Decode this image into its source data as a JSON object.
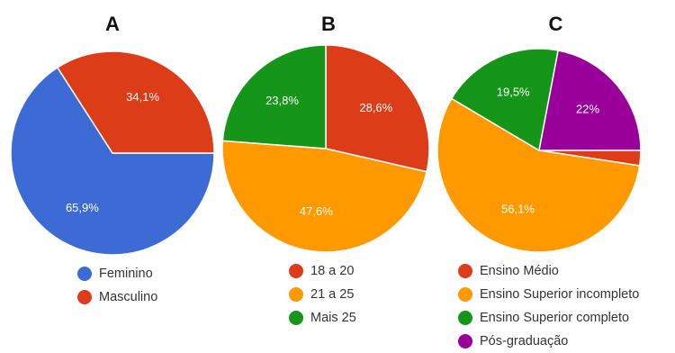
{
  "chart_data": [
    {
      "type": "pie",
      "title": "A",
      "slices": [
        {
          "label": "Feminino",
          "value": 65.9,
          "value_label": "65,9%",
          "color": "#3c6bd6"
        },
        {
          "label": "Masculino",
          "value": 34.1,
          "value_label": "34,1%",
          "color": "#dc3c17"
        }
      ]
    },
    {
      "type": "pie",
      "title": "B",
      "slices": [
        {
          "label": "18 a 20",
          "value": 28.6,
          "value_label": "28,6%",
          "color": "#dc3c17"
        },
        {
          "label": "21 a 25",
          "value": 47.6,
          "value_label": "47,6%",
          "color": "#ff9900"
        },
        {
          "label": "Mais 25",
          "value": 23.8,
          "value_label": "23,8%",
          "color": "#159618"
        }
      ]
    },
    {
      "type": "pie",
      "title": "C",
      "slices": [
        {
          "label": "Ensino Médio",
          "value": 2.4,
          "value_label": "",
          "color": "#dc3c17"
        },
        {
          "label": "Ensino Superior incompleto",
          "value": 56.1,
          "value_label": "56,1%",
          "color": "#ff9900"
        },
        {
          "label": "Ensino Superior completo",
          "value": 19.5,
          "value_label": "19,5%",
          "color": "#159618"
        },
        {
          "label": "Pós-graduação",
          "value": 22,
          "value_label": "22%",
          "color": "#990099"
        }
      ]
    }
  ]
}
